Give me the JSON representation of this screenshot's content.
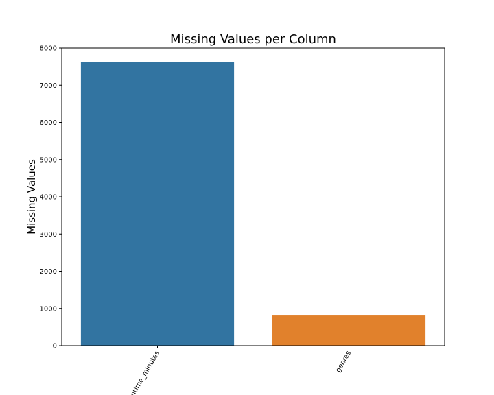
{
  "chart_data": {
    "type": "bar",
    "title": "Missing Values per Column",
    "xlabel": "",
    "ylabel": "Missing Values",
    "categories": [
      "runtime_minutes",
      "genres"
    ],
    "values": [
      7620,
      810
    ],
    "ylim": [
      0,
      8000
    ],
    "yticks": [
      0,
      1000,
      2000,
      3000,
      4000,
      5000,
      6000,
      7000,
      8000
    ],
    "colors": [
      "#3274a1",
      "#e1812c"
    ],
    "grid": false,
    "legend": "none"
  }
}
